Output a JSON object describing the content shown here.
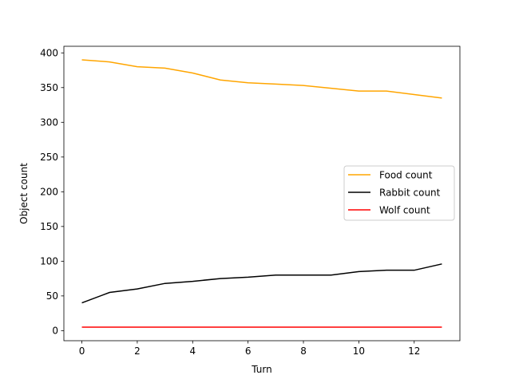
{
  "chart_data": {
    "type": "line",
    "title": "",
    "xlabel": "Turn",
    "ylabel": "Object count",
    "xlim": [
      -0.65,
      13.65
    ],
    "ylim": [
      -14.5,
      409.5
    ],
    "xticks": [
      0,
      2,
      4,
      6,
      8,
      10,
      12
    ],
    "yticks": [
      0,
      50,
      100,
      150,
      200,
      250,
      300,
      350,
      400
    ],
    "grid": false,
    "legend_position": "center-right",
    "x": [
      0,
      1,
      2,
      3,
      4,
      5,
      6,
      7,
      8,
      9,
      10,
      11,
      12,
      13
    ],
    "series": [
      {
        "name": "Food count",
        "color": "#ffa500",
        "values": [
          390,
          387,
          380,
          378,
          371,
          361,
          357,
          355,
          353,
          349,
          345,
          345,
          340,
          335
        ]
      },
      {
        "name": "Rabbit count",
        "color": "#000000",
        "values": [
          40,
          55,
          60,
          68,
          71,
          75,
          77,
          80,
          80,
          80,
          85,
          87,
          87,
          96
        ]
      },
      {
        "name": "Wolf count",
        "color": "#ff0000",
        "values": [
          5,
          5,
          5,
          5,
          5,
          5,
          5,
          5,
          5,
          5,
          5,
          5,
          5,
          5
        ]
      }
    ]
  }
}
